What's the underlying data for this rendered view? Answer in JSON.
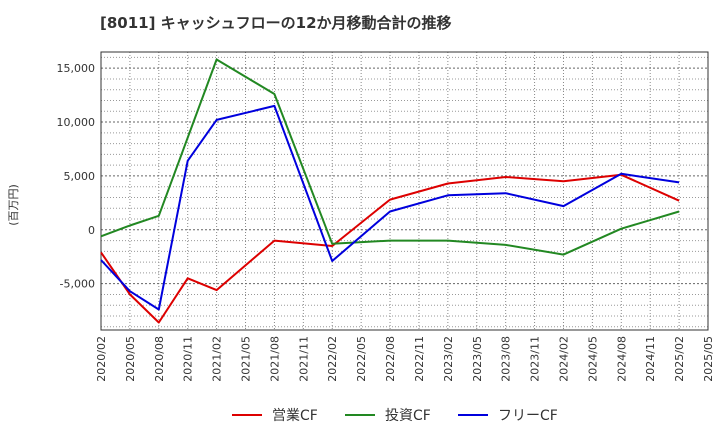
{
  "chart_data": {
    "type": "line",
    "title": "[8011]  キャッシュフローの12か月移動合計の推移",
    "xlabel": "",
    "ylabel": "(百万円)",
    "categories": [
      "2020/02",
      "2020/05",
      "2020/08",
      "2020/11",
      "2021/02",
      "2021/05",
      "2021/08",
      "2021/11",
      "2022/02",
      "2022/05",
      "2022/08",
      "2022/11",
      "2023/02",
      "2023/05",
      "2023/08",
      "2023/11",
      "2024/02",
      "2024/05",
      "2024/08",
      "2024/11",
      "2025/02",
      "2025/05"
    ],
    "ylim": [
      -9300,
      16500
    ],
    "yticks": [
      -5000,
      0,
      5000,
      10000,
      15000
    ],
    "ytick_labels": [
      "-5,000",
      "0",
      "5,000",
      "10,000",
      "15,000"
    ],
    "grid": true,
    "legend_position": "bottom",
    "series": [
      {
        "name": "営業CF",
        "color": "#dd0000",
        "points": [
          [
            "2020/02",
            -2100
          ],
          [
            "2020/05",
            -6000
          ],
          [
            "2020/08",
            -8600
          ],
          [
            "2020/11",
            -4500
          ],
          [
            "2021/02",
            -5600
          ],
          [
            "2021/08",
            -1000
          ],
          [
            "2022/02",
            -1500
          ],
          [
            "2022/08",
            2800
          ],
          [
            "2023/02",
            4300
          ],
          [
            "2023/08",
            4900
          ],
          [
            "2024/02",
            4500
          ],
          [
            "2024/08",
            5100
          ],
          [
            "2025/02",
            2700
          ]
        ]
      },
      {
        "name": "投資CF",
        "color": "#228822",
        "points": [
          [
            "2020/02",
            -600
          ],
          [
            "2020/05",
            400
          ],
          [
            "2020/08",
            1300
          ],
          [
            "2021/02",
            15800
          ],
          [
            "2021/08",
            12600
          ],
          [
            "2022/02",
            -1300
          ],
          [
            "2022/08",
            -1000
          ],
          [
            "2023/02",
            -1000
          ],
          [
            "2023/08",
            -1400
          ],
          [
            "2024/02",
            -2300
          ],
          [
            "2024/08",
            100
          ],
          [
            "2025/02",
            1700
          ]
        ]
      },
      {
        "name": "フリーCF",
        "color": "#0000dd",
        "points": [
          [
            "2020/02",
            -2800
          ],
          [
            "2020/05",
            -5700
          ],
          [
            "2020/08",
            -7400
          ],
          [
            "2020/11",
            6400
          ],
          [
            "2021/02",
            10200
          ],
          [
            "2021/08",
            11500
          ],
          [
            "2022/02",
            -2900
          ],
          [
            "2022/08",
            1700
          ],
          [
            "2023/02",
            3200
          ],
          [
            "2023/08",
            3400
          ],
          [
            "2024/02",
            2200
          ],
          [
            "2024/08",
            5200
          ],
          [
            "2025/02",
            4400
          ]
        ]
      }
    ]
  }
}
